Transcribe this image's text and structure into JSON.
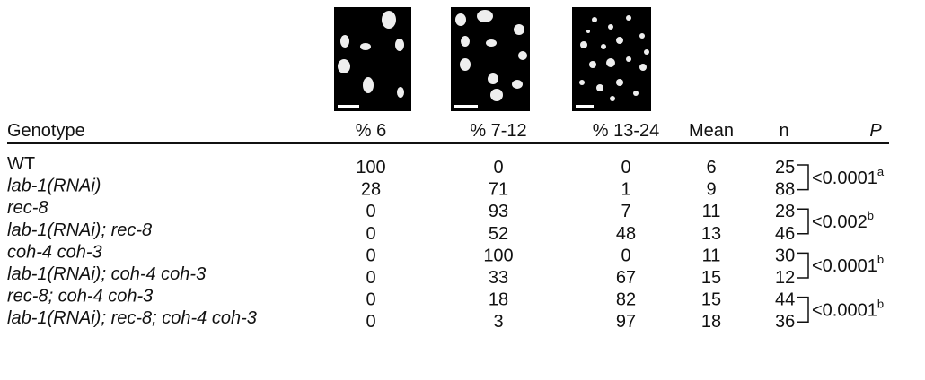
{
  "table": {
    "header": [
      "Genotype",
      "% 6",
      "% 7-12",
      "% 13-24",
      "Mean",
      "n",
      "P"
    ],
    "rows": [
      [
        "WT",
        100,
        0,
        0,
        6,
        25
      ],
      [
        "lab-1(RNAi)",
        28,
        71,
        1,
        9,
        88
      ],
      [
        "rec-8",
        0,
        93,
        7,
        11,
        28
      ],
      [
        "lab-1(RNAi); rec-8",
        0,
        52,
        48,
        13,
        46
      ],
      [
        "coh-4 coh-3",
        0,
        100,
        0,
        11,
        30
      ],
      [
        "lab-1(RNAi); coh-4 coh-3",
        0,
        33,
        67,
        15,
        12
      ],
      [
        "rec-8; coh-4 coh-3",
        0,
        18,
        82,
        15,
        44
      ],
      [
        "lab-1(RNAi); rec-8; coh-4 coh-3",
        0,
        3,
        97,
        18,
        36
      ]
    ],
    "p_values": [
      {
        "text": "<0.0001",
        "note": "a"
      },
      {
        "text": "<0.002",
        "note": "b"
      },
      {
        "text": "<0.0001",
        "note": "b"
      },
      {
        "text": "<0.0001",
        "note": "b"
      }
    ]
  }
}
